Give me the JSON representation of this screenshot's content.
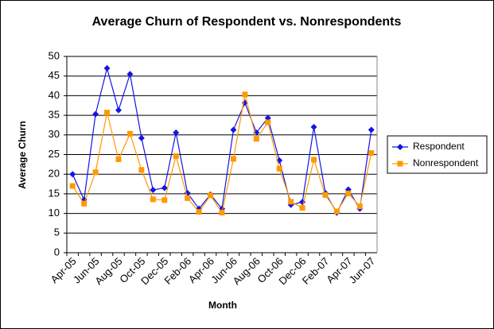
{
  "chart_data": {
    "type": "line",
    "title": "Average Churn of Respondent vs. Nonrespondents",
    "x_label": "Month",
    "y_label": "Average Churn",
    "categories": [
      "Apr-05",
      null,
      "Jun-05",
      null,
      "Aug-05",
      null,
      "Oct-05",
      null,
      "Dec-05",
      null,
      "Feb-06",
      null,
      "Apr-06",
      null,
      "Jun-06",
      null,
      "Aug-06",
      null,
      "Oct-06",
      null,
      "Dec-06",
      null,
      "Feb-07",
      null,
      "Apr-07",
      null,
      "Jun-07"
    ],
    "series": [
      {
        "name": "Respondent",
        "color": "#1414e6",
        "marker": "diamond",
        "values": [
          20,
          13.5,
          35.3,
          47,
          36.3,
          45.5,
          29.2,
          16,
          16.5,
          30.6,
          15.2,
          11.2,
          14.8,
          11.2,
          31.3,
          38.2,
          30.6,
          34.3,
          23.5,
          12.2,
          12.9,
          32,
          15.2,
          10.2,
          16.1,
          11.2,
          31.3
        ]
      },
      {
        "name": "Nonrespondent",
        "color": "#ff9900",
        "marker": "square",
        "values": [
          17,
          12.5,
          20.5,
          35.7,
          23.8,
          30.3,
          21.1,
          13.6,
          13.4,
          24.6,
          13.9,
          10.4,
          14.6,
          10.2,
          23.9,
          40.3,
          29,
          33.2,
          21.4,
          13,
          11.4,
          23.7,
          14.7,
          10.5,
          15.1,
          11.8,
          25.4
        ]
      }
    ],
    "ylim": [
      0,
      50
    ],
    "yticks": [
      0,
      5,
      10,
      15,
      20,
      25,
      30,
      35,
      40,
      45,
      50
    ],
    "grid": true,
    "legend": "right"
  }
}
